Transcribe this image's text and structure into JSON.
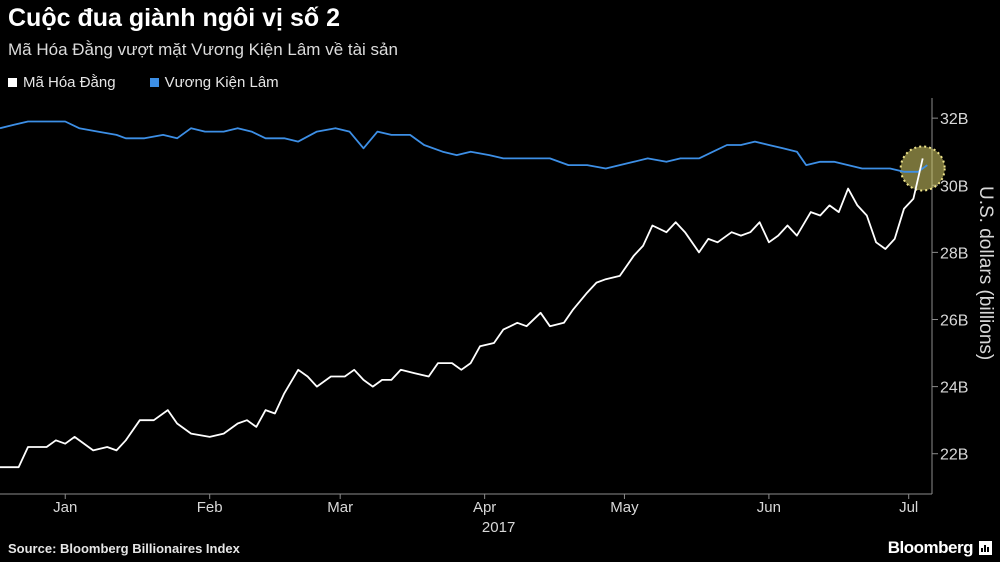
{
  "header": {
    "title": "Cuộc đua giành ngôi vị số 2",
    "subtitle": "Mã Hóa Đằng vượt mặt Vương Kiện Lâm về tài sản"
  },
  "footer": {
    "source": "Source:  Bloomberg Billionaires Index",
    "brand": "Bloomberg",
    "brand_icon": "bar-chart-icon"
  },
  "colors": {
    "background": "#000000",
    "series_ma": "#ffffff",
    "series_wang": "#3d8fe6",
    "highlight": "#d9cf6a"
  },
  "chart_data": {
    "type": "line",
    "title": "Cuộc đua giành ngôi vị số 2",
    "subtitle": "Mã Hóa Đằng vượt mặt Vương Kiện Lâm về tài sản",
    "ylabel": "U.S. dollars (billions)",
    "y_unit_suffix": "B",
    "ylim": [
      20.8,
      32.6
    ],
    "yticks": [
      22,
      24,
      26,
      28,
      30,
      32
    ],
    "xlim": [
      "2017-01-01",
      "2017-07-20"
    ],
    "xticks": [
      {
        "date": "2017-01-15",
        "label": "Jan"
      },
      {
        "date": "2017-02-15",
        "label": "Feb"
      },
      {
        "date": "2017-03-15",
        "label": "Mar"
      },
      {
        "date": "2017-04-15",
        "label": "Apr"
      },
      {
        "date": "2017-05-15",
        "label": "May"
      },
      {
        "date": "2017-06-15",
        "label": "Jun"
      },
      {
        "date": "2017-07-15",
        "label": "Jul"
      }
    ],
    "year_label": "2017",
    "axis_position": "right",
    "grid": false,
    "legend_position": "top-left",
    "highlight": {
      "date": "2017-07-18",
      "value": 30.5
    },
    "series": [
      {
        "name": "Mã Hóa Đằng",
        "color": "#ffffff",
        "points": [
          [
            "2017-01-01",
            21.6
          ],
          [
            "2017-01-05",
            21.6
          ],
          [
            "2017-01-07",
            22.2
          ],
          [
            "2017-01-11",
            22.2
          ],
          [
            "2017-01-13",
            22.4
          ],
          [
            "2017-01-15",
            22.3
          ],
          [
            "2017-01-17",
            22.5
          ],
          [
            "2017-01-21",
            22.1
          ],
          [
            "2017-01-24",
            22.2
          ],
          [
            "2017-01-26",
            22.1
          ],
          [
            "2017-01-28",
            22.4
          ],
          [
            "2017-01-31",
            23.0
          ],
          [
            "2017-02-03",
            23.0
          ],
          [
            "2017-02-06",
            23.3
          ],
          [
            "2017-02-08",
            22.9
          ],
          [
            "2017-02-11",
            22.6
          ],
          [
            "2017-02-15",
            22.5
          ],
          [
            "2017-02-18",
            22.6
          ],
          [
            "2017-02-21",
            22.9
          ],
          [
            "2017-02-23",
            23.0
          ],
          [
            "2017-02-25",
            22.8
          ],
          [
            "2017-02-27",
            23.3
          ],
          [
            "2017-03-01",
            23.2
          ],
          [
            "2017-03-03",
            23.8
          ],
          [
            "2017-03-06",
            24.5
          ],
          [
            "2017-03-08",
            24.3
          ],
          [
            "2017-03-10",
            24.0
          ],
          [
            "2017-03-13",
            24.3
          ],
          [
            "2017-03-16",
            24.3
          ],
          [
            "2017-03-18",
            24.5
          ],
          [
            "2017-03-20",
            24.2
          ],
          [
            "2017-03-22",
            24.0
          ],
          [
            "2017-03-24",
            24.2
          ],
          [
            "2017-03-26",
            24.2
          ],
          [
            "2017-03-28",
            24.5
          ],
          [
            "2017-03-31",
            24.4
          ],
          [
            "2017-04-03",
            24.3
          ],
          [
            "2017-04-05",
            24.7
          ],
          [
            "2017-04-08",
            24.7
          ],
          [
            "2017-04-10",
            24.5
          ],
          [
            "2017-04-12",
            24.7
          ],
          [
            "2017-04-14",
            25.2
          ],
          [
            "2017-04-17",
            25.3
          ],
          [
            "2017-04-19",
            25.7
          ],
          [
            "2017-04-22",
            25.9
          ],
          [
            "2017-04-24",
            25.8
          ],
          [
            "2017-04-27",
            26.2
          ],
          [
            "2017-04-29",
            25.8
          ],
          [
            "2017-05-02",
            25.9
          ],
          [
            "2017-05-04",
            26.3
          ],
          [
            "2017-05-07",
            26.8
          ],
          [
            "2017-05-09",
            27.1
          ],
          [
            "2017-05-11",
            27.2
          ],
          [
            "2017-05-14",
            27.3
          ],
          [
            "2017-05-17",
            27.9
          ],
          [
            "2017-05-19",
            28.2
          ],
          [
            "2017-05-21",
            28.8
          ],
          [
            "2017-05-24",
            28.6
          ],
          [
            "2017-05-26",
            28.9
          ],
          [
            "2017-05-28",
            28.6
          ],
          [
            "2017-05-31",
            28.0
          ],
          [
            "2017-06-02",
            28.4
          ],
          [
            "2017-06-04",
            28.3
          ],
          [
            "2017-06-07",
            28.6
          ],
          [
            "2017-06-09",
            28.5
          ],
          [
            "2017-06-11",
            28.6
          ],
          [
            "2017-06-13",
            28.9
          ],
          [
            "2017-06-15",
            28.3
          ],
          [
            "2017-06-17",
            28.5
          ],
          [
            "2017-06-19",
            28.8
          ],
          [
            "2017-06-21",
            28.5
          ],
          [
            "2017-06-24",
            29.2
          ],
          [
            "2017-06-26",
            29.1
          ],
          [
            "2017-06-28",
            29.4
          ],
          [
            "2017-06-30",
            29.2
          ],
          [
            "2017-07-02",
            29.9
          ],
          [
            "2017-07-04",
            29.4
          ],
          [
            "2017-07-06",
            29.1
          ],
          [
            "2017-07-08",
            28.3
          ],
          [
            "2017-07-10",
            28.1
          ],
          [
            "2017-07-12",
            28.4
          ],
          [
            "2017-07-14",
            29.3
          ],
          [
            "2017-07-16",
            29.6
          ],
          [
            "2017-07-18",
            30.8
          ]
        ]
      },
      {
        "name": "Vương Kiện Lâm",
        "color": "#3d8fe6",
        "points": [
          [
            "2017-01-01",
            31.7
          ],
          [
            "2017-01-04",
            31.8
          ],
          [
            "2017-01-07",
            31.9
          ],
          [
            "2017-01-11",
            31.9
          ],
          [
            "2017-01-15",
            31.9
          ],
          [
            "2017-01-18",
            31.7
          ],
          [
            "2017-01-22",
            31.6
          ],
          [
            "2017-01-26",
            31.5
          ],
          [
            "2017-01-28",
            31.4
          ],
          [
            "2017-02-01",
            31.4
          ],
          [
            "2017-02-05",
            31.5
          ],
          [
            "2017-02-08",
            31.4
          ],
          [
            "2017-02-11",
            31.7
          ],
          [
            "2017-02-14",
            31.6
          ],
          [
            "2017-02-18",
            31.6
          ],
          [
            "2017-02-21",
            31.7
          ],
          [
            "2017-02-24",
            31.6
          ],
          [
            "2017-02-27",
            31.4
          ],
          [
            "2017-03-03",
            31.4
          ],
          [
            "2017-03-06",
            31.3
          ],
          [
            "2017-03-10",
            31.6
          ],
          [
            "2017-03-14",
            31.7
          ],
          [
            "2017-03-17",
            31.6
          ],
          [
            "2017-03-20",
            31.1
          ],
          [
            "2017-03-23",
            31.6
          ],
          [
            "2017-03-26",
            31.5
          ],
          [
            "2017-03-30",
            31.5
          ],
          [
            "2017-04-02",
            31.2
          ],
          [
            "2017-04-06",
            31.0
          ],
          [
            "2017-04-09",
            30.9
          ],
          [
            "2017-04-12",
            31.0
          ],
          [
            "2017-04-16",
            30.9
          ],
          [
            "2017-04-19",
            30.8
          ],
          [
            "2017-04-23",
            30.8
          ],
          [
            "2017-04-26",
            30.8
          ],
          [
            "2017-04-29",
            30.8
          ],
          [
            "2017-05-03",
            30.6
          ],
          [
            "2017-05-07",
            30.6
          ],
          [
            "2017-05-11",
            30.5
          ],
          [
            "2017-05-14",
            30.6
          ],
          [
            "2017-05-17",
            30.7
          ],
          [
            "2017-05-20",
            30.8
          ],
          [
            "2017-05-24",
            30.7
          ],
          [
            "2017-05-27",
            30.8
          ],
          [
            "2017-05-31",
            30.8
          ],
          [
            "2017-06-03",
            31.0
          ],
          [
            "2017-06-06",
            31.2
          ],
          [
            "2017-06-09",
            31.2
          ],
          [
            "2017-06-12",
            31.3
          ],
          [
            "2017-06-15",
            31.2
          ],
          [
            "2017-06-18",
            31.1
          ],
          [
            "2017-06-21",
            31.0
          ],
          [
            "2017-06-23",
            30.6
          ],
          [
            "2017-06-26",
            30.7
          ],
          [
            "2017-06-29",
            30.7
          ],
          [
            "2017-07-02",
            30.6
          ],
          [
            "2017-07-05",
            30.5
          ],
          [
            "2017-07-08",
            30.5
          ],
          [
            "2017-07-11",
            30.5
          ],
          [
            "2017-07-14",
            30.4
          ],
          [
            "2017-07-17",
            30.4
          ],
          [
            "2017-07-19",
            30.6
          ]
        ]
      }
    ]
  }
}
